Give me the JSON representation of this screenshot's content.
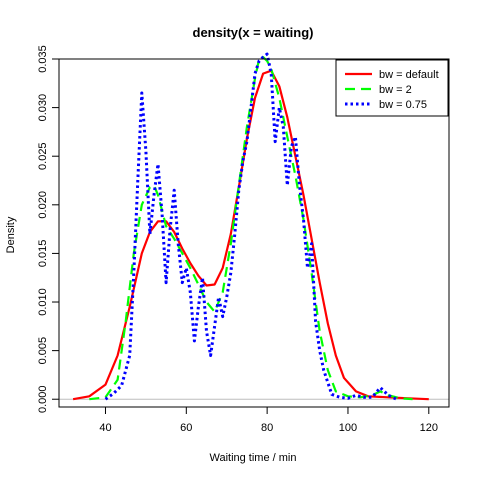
{
  "chart_data": {
    "type": "line",
    "title": "density(x = waiting)",
    "xlabel": "Waiting time / min",
    "ylabel": "Density",
    "xlim": [
      28.5,
      125
    ],
    "ylim": [
      -0.0008,
      0.035
    ],
    "xticks": [
      40,
      60,
      80,
      100,
      120
    ],
    "yticks": [
      0.0,
      0.005,
      0.01,
      0.015,
      0.02,
      0.025,
      0.03,
      0.035
    ],
    "ytick_labels": [
      "0.000",
      "0.005",
      "0.010",
      "0.015",
      "0.020",
      "0.025",
      "0.030",
      "0.035"
    ],
    "baseline": 0,
    "legend_position": "top-right",
    "grid": false,
    "series": [
      {
        "name": "bw = default",
        "color": "#ff0000",
        "style": "solid",
        "x": [
          32,
          36,
          40,
          43,
          46,
          49,
          51,
          53,
          55,
          57,
          59,
          61,
          63,
          65,
          67,
          69,
          71,
          73,
          75,
          77,
          79,
          81,
          83,
          85,
          87,
          89,
          91,
          93,
          95,
          97,
          99,
          102,
          105,
          110,
          115,
          120
        ],
        "y": [
          0.0,
          0.0003,
          0.0015,
          0.0045,
          0.0095,
          0.015,
          0.0172,
          0.0183,
          0.0183,
          0.0172,
          0.0155,
          0.014,
          0.0127,
          0.0117,
          0.0118,
          0.0135,
          0.017,
          0.0218,
          0.0268,
          0.031,
          0.0335,
          0.0338,
          0.0322,
          0.029,
          0.025,
          0.021,
          0.0165,
          0.012,
          0.0078,
          0.0045,
          0.0022,
          0.0008,
          0.0003,
          0.0002,
          0.0001,
          0.0
        ]
      },
      {
        "name": "bw = 2",
        "color": "#00ff00",
        "style": "dashed",
        "x": [
          36,
          40,
          43,
          45,
          47,
          49,
          51,
          52,
          53,
          55,
          57,
          59,
          61,
          63,
          65,
          67,
          69,
          71,
          73,
          75,
          77,
          78,
          79,
          80,
          81,
          83,
          85,
          87,
          89,
          91,
          93,
          95,
          97,
          100,
          103,
          106,
          108,
          110,
          113,
          116
        ],
        "y": [
          0.0,
          0.0002,
          0.002,
          0.008,
          0.015,
          0.02,
          0.0218,
          0.022,
          0.021,
          0.0178,
          0.0165,
          0.015,
          0.0135,
          0.0118,
          0.01,
          0.009,
          0.011,
          0.016,
          0.022,
          0.028,
          0.033,
          0.035,
          0.0352,
          0.0348,
          0.034,
          0.031,
          0.027,
          0.023,
          0.0185,
          0.013,
          0.007,
          0.003,
          0.0008,
          0.0003,
          0.0002,
          0.0004,
          0.0008,
          0.0004,
          0.0001,
          0.0
        ]
      },
      {
        "name": "bw = 0.75",
        "color": "#0000ff",
        "style": "dotted",
        "x": [
          40,
          42,
          44,
          46,
          47,
          48,
          49,
          50,
          51,
          52,
          53,
          54,
          55,
          56,
          57,
          58,
          59,
          60,
          61,
          62,
          63,
          64,
          65,
          66,
          67,
          68,
          69,
          70,
          71,
          72,
          73,
          74,
          75,
          76,
          77,
          78,
          79,
          80,
          81,
          82,
          83,
          84,
          85,
          86,
          87,
          88,
          89,
          90,
          91,
          92,
          93,
          94,
          96,
          98,
          100,
          102,
          104,
          106,
          108,
          110,
          112
        ],
        "y": [
          0.0,
          0.0006,
          0.0014,
          0.0045,
          0.013,
          0.0225,
          0.0315,
          0.0255,
          0.017,
          0.021,
          0.0242,
          0.019,
          0.012,
          0.0175,
          0.0215,
          0.016,
          0.012,
          0.0135,
          0.011,
          0.006,
          0.0095,
          0.0125,
          0.007,
          0.0045,
          0.0075,
          0.0105,
          0.0085,
          0.0105,
          0.013,
          0.017,
          0.0215,
          0.0245,
          0.0265,
          0.03,
          0.0335,
          0.0348,
          0.0352,
          0.0355,
          0.0335,
          0.0265,
          0.03,
          0.028,
          0.022,
          0.026,
          0.027,
          0.022,
          0.0185,
          0.0135,
          0.016,
          0.008,
          0.005,
          0.003,
          0.0005,
          0.0002,
          0.0001,
          0.0004,
          0.0002,
          0.0002,
          0.0012,
          0.0004,
          0.0
        ]
      }
    ]
  }
}
